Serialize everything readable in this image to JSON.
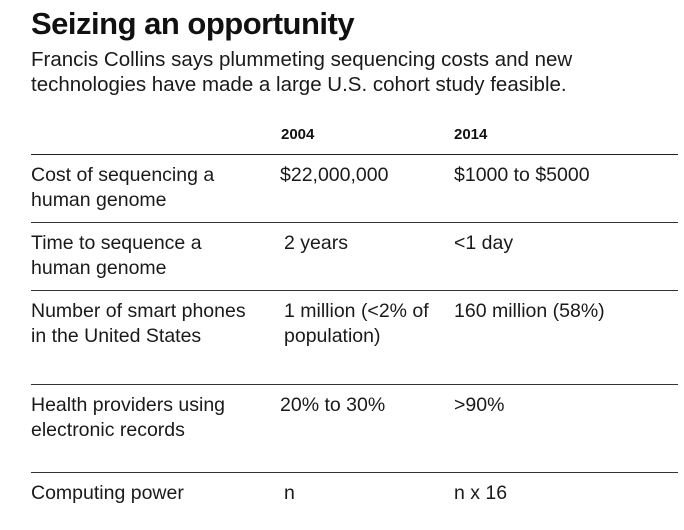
{
  "title": "Seizing an opportunity",
  "subtitle": "Francis Collins says plummeting sequencing costs and new technologies have made a large U.S. cohort study feasible.",
  "table": {
    "headers": [
      "",
      "2004",
      "2014"
    ],
    "rows": [
      [
        "Cost of sequencing a human genome",
        "$22,000,000",
        "$1000 to $5000"
      ],
      [
        "Time to sequence a human genome",
        "2 years",
        "<1 day"
      ],
      [
        "Number of smart phones in the United States",
        "1 million (<2% of population)",
        "160 million (58%)"
      ],
      [
        "Health providers using electronic records",
        "20% to 30%",
        ">90%"
      ],
      [
        "Computing power",
        "n",
        "n x 16"
      ]
    ]
  }
}
